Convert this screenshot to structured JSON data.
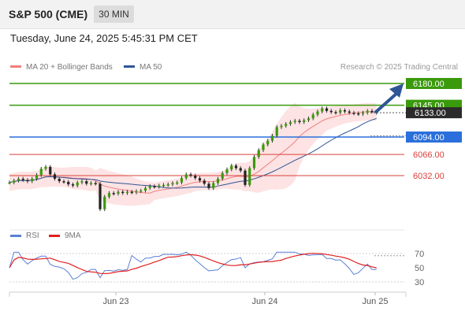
{
  "header": {
    "instrument": "S&P 500 (CME)",
    "timeframe": "30 MIN"
  },
  "datetime": "Tuesday, June 24, 2025 5:45:31 PM CET",
  "legend": {
    "ma20": "MA 20 + Bollinger Bands",
    "ma50": "MA 50",
    "ma20_color": "#f08080",
    "ma50_color": "#2f5597"
  },
  "credit": "Research © 2025 Trading Central",
  "levels": [
    {
      "label": "6180.00",
      "value": 6180,
      "color": "#3a9a0c",
      "style": "box"
    },
    {
      "label": "6145.00",
      "value": 6145,
      "color": "#3a9a0c",
      "style": "box"
    },
    {
      "label": "6133.00",
      "value": 6133,
      "color": "#222222",
      "style": "current"
    },
    {
      "label": "6094.00",
      "value": 6094,
      "color": "#2a6fdb",
      "style": "box"
    },
    {
      "label": "6066.00",
      "value": 6066,
      "color": "#d9413b",
      "style": "text"
    },
    {
      "label": "6032.00",
      "value": 6032,
      "color": "#d9413b",
      "style": "text"
    }
  ],
  "indicator": {
    "rsi_label": "RSI",
    "ma9_label": "9MA",
    "rsi_color": "#5b7fd6",
    "ma9_color": "#e02020",
    "ticks": [
      "70",
      "50",
      "30"
    ]
  },
  "x_axis": [
    "Jun 23",
    "Jun 24",
    "Jun 25"
  ],
  "chart_data": {
    "type": "candlestick",
    "price_series": [
      6021,
      6024,
      6027,
      6025,
      6023,
      6027,
      6033,
      6043,
      6046,
      6034,
      6027,
      6023,
      6022,
      6018,
      6016,
      6021,
      6023,
      6019,
      6020,
      6019,
      5978,
      5998,
      6004,
      6003,
      6006,
      6004,
      6006,
      6005,
      6007,
      6008,
      6012,
      6015,
      6014,
      6016,
      6017,
      6018,
      6020,
      6021,
      6028,
      6034,
      6032,
      6028,
      6024,
      6019,
      6012,
      6020,
      6027,
      6036,
      6042,
      6048,
      6044,
      6040,
      6017,
      6044,
      6062,
      6073,
      6082,
      6088,
      6096,
      6110,
      6112,
      6115,
      6118,
      6120,
      6118,
      6121,
      6124,
      6130,
      6135,
      6140,
      6136,
      6134,
      6133,
      6137,
      6135,
      6133,
      6132,
      6131,
      6133,
      6136,
      6135,
      6133
    ]
  }
}
